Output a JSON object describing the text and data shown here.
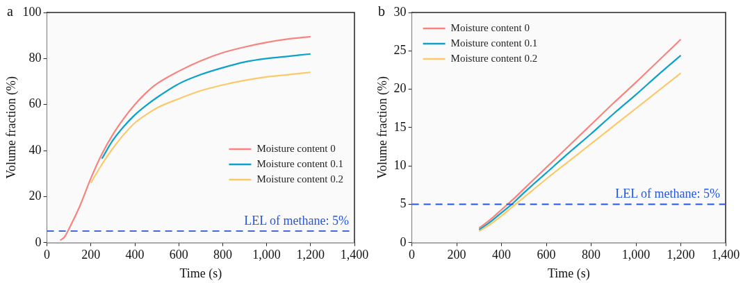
{
  "chart_data": [
    {
      "type": "line",
      "title": "a",
      "xlabel": "Time (s)",
      "ylabel": "Volume fraction (%)",
      "xlim": [
        0,
        1400
      ],
      "ylim": [
        0,
        100
      ],
      "xticks": [
        0,
        200,
        400,
        600,
        800,
        {
          "value": 1000,
          "label": "1,000"
        },
        {
          "value": 1200,
          "label": "1,200"
        },
        {
          "value": 1400,
          "label": "1,400"
        }
      ],
      "yticks": [
        0,
        20,
        40,
        60,
        80,
        100
      ],
      "grid": false,
      "legend": "center right",
      "marker": "none",
      "line_style": "solid",
      "ref_lines": [
        {
          "axis": "y",
          "value": 5,
          "label": "LEL of methane: 5%",
          "color": "#2255e8",
          "line_style": "dashed"
        }
      ],
      "series": [
        {
          "name": "Moisture content 0",
          "color": "#f8837f",
          "x": [
            60,
            80,
            100,
            150,
            200,
            250,
            300,
            350,
            400,
            450,
            500,
            600,
            700,
            800,
            900,
            1000,
            1100,
            1200
          ],
          "values": [
            1,
            2.5,
            6,
            16,
            28,
            38.5,
            47,
            54,
            60,
            65,
            69,
            74.5,
            79,
            82.5,
            85,
            87,
            88.5,
            89.5
          ]
        },
        {
          "name": "Moisture content 0.1",
          "color": "#0aa2c8",
          "x": [
            250,
            300,
            350,
            400,
            450,
            500,
            600,
            700,
            800,
            900,
            1000,
            1100,
            1200
          ],
          "values": [
            36.5,
            44.5,
            50.5,
            55.5,
            59.5,
            63,
            69,
            73,
            76,
            78.5,
            80,
            81,
            82
          ]
        },
        {
          "name": "Moisture content 0.2",
          "color": "#fcc96a",
          "x": [
            200,
            250,
            300,
            350,
            400,
            450,
            500,
            600,
            700,
            800,
            900,
            1000,
            1100,
            1200
          ],
          "values": [
            26,
            34,
            41,
            47,
            52,
            55.5,
            58.5,
            62.5,
            66,
            68.5,
            70.5,
            72,
            73,
            74
          ]
        }
      ]
    },
    {
      "type": "line",
      "title": "b",
      "xlabel": "Time (s)",
      "ylabel": "Volume fraction (%)",
      "xlim": [
        0,
        1400
      ],
      "ylim": [
        0,
        30
      ],
      "xticks": [
        0,
        200,
        400,
        600,
        800,
        {
          "value": 1000,
          "label": "1,000"
        },
        {
          "value": 1200,
          "label": "1,200"
        },
        {
          "value": 1400,
          "label": "1,400"
        }
      ],
      "yticks": [
        0,
        5,
        10,
        15,
        20,
        25,
        30
      ],
      "grid": false,
      "legend": "top left",
      "marker": "none",
      "line_style": "solid",
      "ref_lines": [
        {
          "axis": "y",
          "value": 5,
          "label": "LEL of methane: 5%",
          "color": "#2255e8",
          "line_style": "dashed"
        }
      ],
      "series": [
        {
          "name": "Moisture content 0",
          "color": "#f8837f",
          "x": [
            300,
            350,
            400,
            450,
            500,
            600,
            700,
            800,
            900,
            1000,
            1100,
            1200
          ],
          "values": [
            1.9,
            3,
            4.3,
            5.6,
            7,
            9.8,
            12.6,
            15.4,
            18.2,
            20.9,
            23.7,
            26.5
          ]
        },
        {
          "name": "Moisture content 0.1",
          "color": "#0aa2c8",
          "x": [
            300,
            350,
            400,
            450,
            500,
            600,
            700,
            800,
            900,
            1000,
            1100,
            1200
          ],
          "values": [
            1.7,
            2.7,
            3.9,
            5.1,
            6.5,
            9.1,
            11.7,
            14.2,
            16.8,
            19.3,
            21.9,
            24.4
          ]
        },
        {
          "name": "Moisture content 0.2",
          "color": "#fcc96a",
          "x": [
            300,
            350,
            400,
            450,
            500,
            600,
            700,
            800,
            900,
            1000,
            1100,
            1200
          ],
          "values": [
            1.5,
            2.4,
            3.5,
            4.7,
            5.9,
            8.3,
            10.6,
            12.9,
            15.2,
            17.5,
            19.8,
            22.1
          ]
        }
      ]
    }
  ]
}
